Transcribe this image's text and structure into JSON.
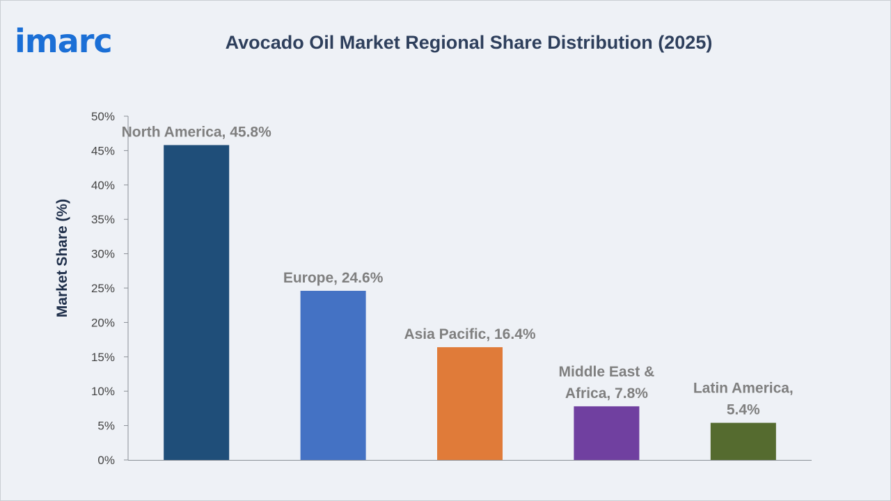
{
  "brand": {
    "logo_text": "imarc",
    "colors": {
      "logo": "#1b6fd6",
      "title": "#2e3f5c",
      "axis_label": "#1f2f4a",
      "tick_label": "#444444",
      "data_label": "#7f7f7f",
      "axis": "#8a8f96",
      "background": "#eef1f6"
    }
  },
  "chart_data": {
    "type": "bar",
    "title": "Avocado Oil Market Regional Share Distribution (2025)",
    "xlabel": "",
    "ylabel": "Market Share (%)",
    "ylim": [
      0,
      50
    ],
    "yticks": [
      0,
      5,
      10,
      15,
      20,
      25,
      30,
      35,
      40,
      45,
      50
    ],
    "ytick_labels": [
      "0%",
      "5%",
      "10%",
      "15%",
      "20%",
      "25%",
      "30%",
      "35%",
      "40%",
      "45%",
      "50%"
    ],
    "grid": false,
    "legend": "none",
    "categories": [
      "North America",
      "Europe",
      "Asia Pacific",
      "Middle East & Africa",
      "Latin America"
    ],
    "values": [
      45.8,
      24.6,
      16.4,
      7.8,
      5.4
    ],
    "colors": [
      "#1f4e79",
      "#4472c4",
      "#e07b39",
      "#7040a0",
      "#556b2f"
    ],
    "data_labels": [
      [
        "North America, 45.8%"
      ],
      [
        "Europe, 24.6%"
      ],
      [
        "Asia Pacific, 16.4%"
      ],
      [
        "Middle East &",
        "Africa, 7.8%"
      ],
      [
        "Latin America,",
        "5.4%"
      ]
    ]
  }
}
